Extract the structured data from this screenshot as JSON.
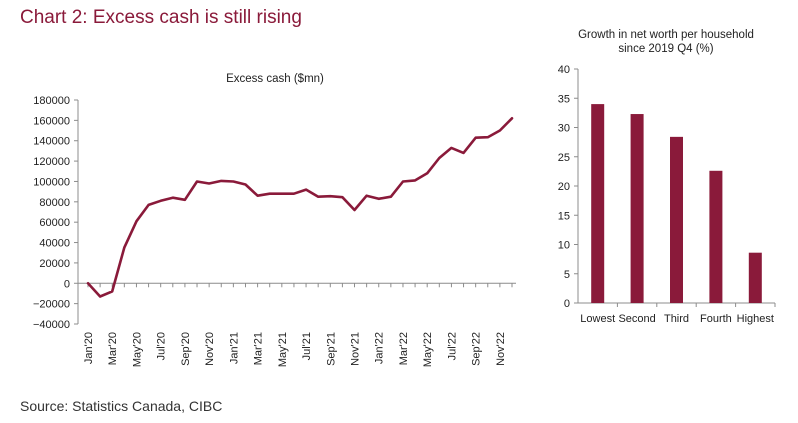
{
  "title": "Chart 2: Excess cash is still rising",
  "source": "Source: Statistics Canada, CIBC",
  "colors": {
    "accent": "#8a1a3a",
    "axis": "#8c8c8c"
  },
  "chart_data": [
    {
      "type": "line",
      "title": "Excess cash ($mn)",
      "ylim": [
        -40000,
        180000
      ],
      "yticks": [
        "180000",
        "160000",
        "140000",
        "120000",
        "100000",
        "80000",
        "60000",
        "40000",
        "20000",
        "0",
        "−20000",
        "−40000"
      ],
      "ytick_values": [
        180000,
        160000,
        140000,
        120000,
        100000,
        80000,
        60000,
        40000,
        20000,
        0,
        -20000,
        -40000
      ],
      "xtick_labels": [
        "Jan'20",
        "Mar'20",
        "May'20",
        "Jul'20",
        "Sep'20",
        "Nov'20",
        "Jan'21",
        "Mar'21",
        "May'21",
        "Jul'21",
        "Sep'21",
        "Nov'21",
        "Jan'22",
        "Mar'22",
        "May'22",
        "Jul'22",
        "Sep'22",
        "Nov'22"
      ],
      "x": [
        "Jan'20",
        "Feb'20",
        "Mar'20",
        "Apr'20",
        "May'20",
        "Jun'20",
        "Jul'20",
        "Aug'20",
        "Sep'20",
        "Oct'20",
        "Nov'20",
        "Dec'20",
        "Jan'21",
        "Feb'21",
        "Mar'21",
        "Apr'21",
        "May'21",
        "Jun'21",
        "Jul'21",
        "Aug'21",
        "Sep'21",
        "Oct'21",
        "Nov'21",
        "Dec'21",
        "Jan'22",
        "Feb'22",
        "Mar'22",
        "Apr'22",
        "May'22",
        "Jun'22",
        "Jul'22",
        "Aug'22",
        "Sep'22",
        "Oct'22",
        "Nov'22",
        "Dec'22"
      ],
      "values": [
        0,
        -13000,
        -8000,
        35000,
        61000,
        77000,
        81000,
        84000,
        82000,
        100000,
        98000,
        100500,
        100000,
        97000,
        86000,
        88000,
        88000,
        88000,
        92000,
        85000,
        85500,
        84500,
        72000,
        86000,
        83000,
        85000,
        100000,
        101000,
        108000,
        123000,
        133000,
        128000,
        143000,
        143500,
        150000,
        162000
      ]
    },
    {
      "type": "bar",
      "title": "Growth in net worth per household",
      "subtitle": "since 2019 Q4 (%)",
      "categories": [
        "Lowest",
        "Second",
        "Third",
        "Fourth",
        "Highest"
      ],
      "values": [
        34,
        32.3,
        28.4,
        22.6,
        8.6
      ],
      "ylim": [
        0,
        40
      ],
      "yticks": [
        "40",
        "35",
        "30",
        "25",
        "20",
        "15",
        "10",
        "5",
        "0"
      ],
      "ytick_values": [
        40,
        35,
        30,
        25,
        20,
        15,
        10,
        5,
        0
      ]
    }
  ]
}
